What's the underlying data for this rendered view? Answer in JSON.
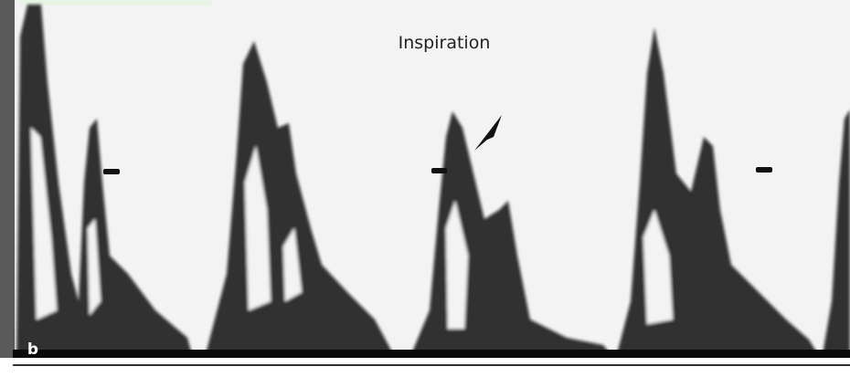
{
  "label": "Inspiration",
  "panel": "b"
}
